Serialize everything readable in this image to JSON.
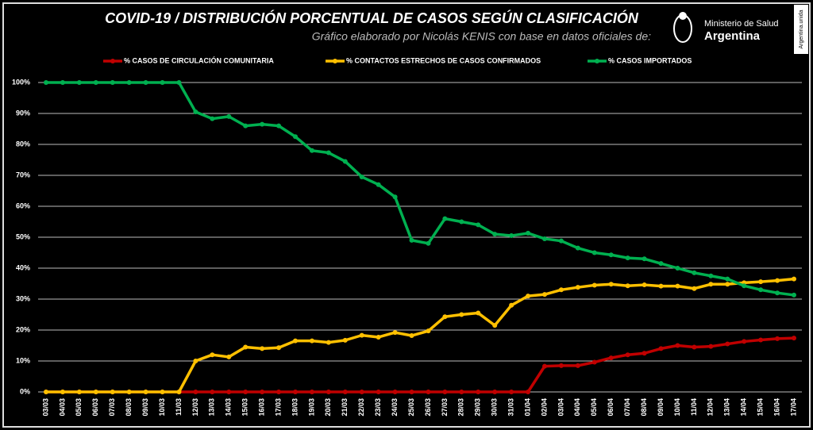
{
  "chart_data": {
    "type": "line",
    "title": "COVID-19  /  DISTRIBUCIÓN PORCENTUAL DE CASOS SEGÚN CLASIFICACIÓN",
    "subtitle": "Gráfico elaborado por Nicolás KENIS con base en datos oficiales de:",
    "categories": [
      "03/03",
      "04/03",
      "05/03",
      "06/03",
      "07/03",
      "08/03",
      "09/03",
      "10/03",
      "11/03",
      "12/03",
      "13/03",
      "14/03",
      "15/03",
      "16/03",
      "17/03",
      "18/03",
      "19/03",
      "20/03",
      "21/03",
      "22/03",
      "23/03",
      "24/03",
      "25/03",
      "26/03",
      "27/03",
      "28/03",
      "29/03",
      "30/03",
      "31/03",
      "01/04",
      "02/04",
      "03/04",
      "04/04",
      "05/04",
      "06/04",
      "07/04",
      "08/04",
      "09/04",
      "10/04",
      "11/04",
      "12/04",
      "13/04",
      "14/04",
      "15/04",
      "16/04",
      "17/04"
    ],
    "series": [
      {
        "name": "% CASOS DE CIRCULACIÓN COMUNITARIA",
        "color": "#c00000",
        "values": [
          0,
          0,
          0,
          0,
          0,
          0,
          0,
          0,
          0,
          0,
          0,
          0,
          0,
          0,
          0,
          0,
          0,
          0,
          0,
          0,
          0,
          0,
          0,
          0,
          0,
          0,
          0,
          0,
          0,
          0,
          8.3,
          8.5,
          8.5,
          9.6,
          11,
          12,
          12.5,
          14,
          15,
          14.5,
          14.7,
          15.5,
          16.3,
          16.8,
          17.2,
          17.4
        ]
      },
      {
        "name": "% CONTACTOS ESTRECHOS DE CASOS CONFIRMADOS",
        "color": "#ffc000",
        "values": [
          0,
          0,
          0,
          0,
          0,
          0,
          0,
          0,
          0,
          10,
          12,
          11.3,
          14.5,
          14,
          14.3,
          16.5,
          16.5,
          16,
          16.7,
          18.3,
          17.7,
          19.2,
          18.2,
          19.7,
          24.3,
          25,
          25.5,
          21.5,
          28,
          31,
          31.5,
          33,
          33.8,
          34.5,
          34.8,
          34.3,
          34.6,
          34.2,
          34.2,
          33.4,
          34.8,
          34.8,
          35.3,
          35.6,
          36,
          36.5
        ]
      },
      {
        "name": "% CASOS IMPORTADOS",
        "color": "#00b050",
        "values": [
          100,
          100,
          100,
          100,
          100,
          100,
          100,
          100,
          100,
          90.5,
          88.3,
          89,
          86,
          86.5,
          86,
          82.5,
          78,
          77.3,
          74.5,
          69.5,
          67,
          63,
          49,
          48,
          56,
          55,
          54,
          51,
          50.5,
          51.3,
          49.5,
          48.8,
          46.5,
          45,
          44.3,
          43.3,
          43,
          41.5,
          40,
          38.5,
          37.5,
          36.5,
          34.3,
          33,
          32,
          31.3
        ]
      }
    ],
    "ylim": [
      0,
      100
    ],
    "yticks": [
      {
        "value": 0,
        "label": "0%"
      },
      {
        "value": 10,
        "label": "10%"
      },
      {
        "value": 20,
        "label": "20%"
      },
      {
        "value": 30,
        "label": "30%"
      },
      {
        "value": 40,
        "label": "40%"
      },
      {
        "value": 50,
        "label": "50%"
      },
      {
        "value": 60,
        "label": "60%"
      },
      {
        "value": 70,
        "label": "70%"
      },
      {
        "value": 80,
        "label": "80%"
      },
      {
        "value": 90,
        "label": "90%"
      },
      {
        "value": 100,
        "label": "100%"
      }
    ],
    "grid": true,
    "legend": "top"
  },
  "logo": {
    "line1": "Ministerio de Salud",
    "line2": "Argentina"
  },
  "side_label": "Argentina.unida"
}
